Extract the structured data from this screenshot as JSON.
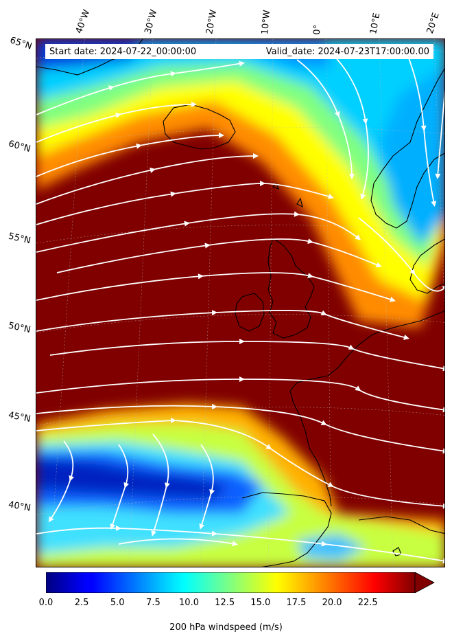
{
  "header": {
    "start_date": "Start date: 2024-07-22_00:00:00",
    "valid_date": "Valid_date: 2024-07-23T17:00:00.00"
  },
  "lon_labels": [
    "40°W",
    "30°W",
    "20°W",
    "10°W",
    "0°",
    "10°E",
    "20°E"
  ],
  "lat_labels": [
    "65°N",
    "60°N",
    "55°N",
    "50°N",
    "45°N",
    "40°N"
  ],
  "colorbar": {
    "title": "200 hPa windspeed (m/s)",
    "ticks": [
      "0.0",
      "2.5",
      "5.0",
      "7.5",
      "10.0",
      "12.5",
      "15.0",
      "17.5",
      "20.0",
      "22.5"
    ],
    "min": 0,
    "max": 25.8,
    "colormap": "jet",
    "extend": "max"
  },
  "colors": {
    "land_outline": "#000000",
    "streamlines": "#ffffff",
    "max_wind": "#800000"
  }
}
